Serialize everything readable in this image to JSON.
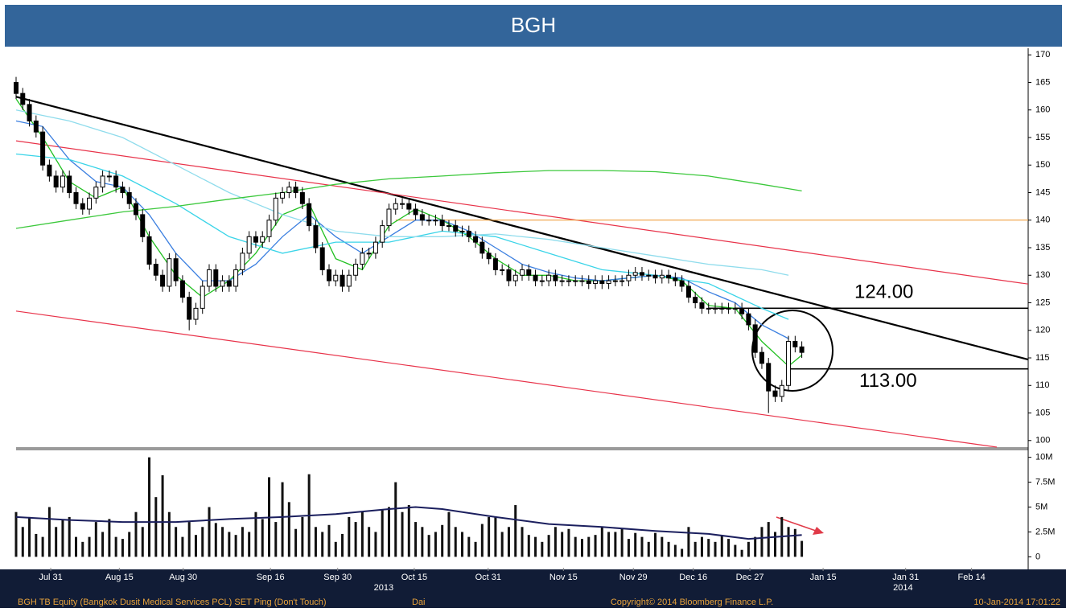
{
  "chart_data": [
    {
      "type": "candlestick",
      "title": "BGH",
      "x": [
        0,
        1,
        2,
        3,
        4,
        5,
        6,
        7,
        8,
        9,
        10,
        11,
        12,
        13,
        14,
        15,
        16,
        17,
        18,
        19,
        20,
        21,
        22,
        23,
        24,
        25,
        26,
        27,
        28,
        29,
        30,
        31,
        32,
        33,
        34,
        35,
        36,
        37,
        38,
        39,
        40,
        41,
        42,
        43,
        44,
        45,
        46,
        47,
        48,
        49,
        50,
        51,
        52,
        53,
        54,
        55,
        56,
        57,
        58,
        59,
        60,
        61,
        62,
        63,
        64,
        65,
        66,
        67,
        68,
        69,
        70,
        71,
        72,
        73,
        74,
        75,
        76,
        77,
        78,
        79,
        80,
        81,
        82,
        83,
        84,
        85,
        86,
        87,
        88,
        89,
        90,
        91,
        92,
        93,
        94,
        95,
        96,
        97,
        98,
        99,
        100,
        101,
        102,
        103,
        104,
        105,
        106,
        107,
        108,
        109,
        110,
        111,
        112,
        113,
        114,
        115,
        116,
        117,
        118
      ],
      "open": [
        165,
        163,
        161,
        158,
        156,
        150,
        148,
        146,
        148,
        145,
        143,
        142,
        144,
        146,
        148,
        148,
        146,
        145,
        143,
        141,
        137,
        132,
        130,
        128,
        133,
        129,
        126,
        122,
        124,
        128,
        131,
        128,
        129,
        128,
        131,
        134,
        137,
        136,
        137,
        140,
        144,
        145,
        146,
        145,
        143,
        139,
        135,
        131,
        129,
        130,
        128,
        130,
        132,
        134,
        134,
        136,
        139,
        142,
        143,
        143,
        142,
        141,
        140,
        140,
        140,
        139,
        139,
        138,
        138,
        137,
        136,
        134,
        133,
        131,
        131,
        129,
        130,
        131,
        130,
        129,
        129,
        130,
        129,
        129,
        129,
        129,
        129,
        128.5,
        129,
        128.5,
        129,
        129,
        129,
        130,
        130.5,
        130,
        130,
        129.5,
        130,
        129.5,
        129,
        128,
        126,
        125,
        124,
        124,
        124,
        124,
        124,
        124,
        123,
        121,
        116,
        114,
        109,
        108,
        110,
        118,
        117
      ],
      "high": [
        166,
        164,
        162,
        159,
        157,
        151,
        149,
        149,
        149,
        146,
        144,
        145,
        147,
        149,
        149,
        149,
        147,
        146,
        144,
        142,
        138,
        133,
        131,
        134,
        134,
        130,
        127,
        125,
        129,
        132,
        132,
        130,
        130,
        132,
        135,
        138,
        138,
        138,
        141,
        145,
        146,
        147,
        147,
        146,
        144,
        140,
        136,
        132,
        131,
        131,
        131,
        133,
        135,
        135,
        137,
        140,
        143,
        144,
        144,
        144,
        143,
        142,
        141,
        141,
        141,
        140,
        140,
        139,
        139,
        138,
        137,
        135,
        134,
        132,
        132,
        131,
        132,
        132,
        131,
        130,
        131,
        131,
        130,
        130,
        130,
        130,
        130,
        130,
        130,
        130,
        130,
        130,
        131,
        131.5,
        131.5,
        131,
        131,
        131,
        131,
        130.5,
        130,
        129,
        127,
        126,
        125,
        125,
        125,
        125,
        125,
        125,
        124,
        122,
        117,
        115,
        110,
        111,
        119,
        119,
        118
      ],
      "low": [
        162,
        160,
        157,
        155,
        149,
        147,
        145,
        145,
        144,
        142,
        141,
        141,
        143,
        145,
        147,
        145,
        144,
        142,
        140,
        136,
        131,
        129,
        127,
        127,
        128,
        125,
        120,
        121,
        123,
        127,
        127,
        127,
        127,
        127,
        130,
        133,
        135,
        135,
        136,
        139,
        143,
        144,
        144,
        142,
        138,
        134,
        130,
        128,
        128,
        127,
        127,
        129,
        131,
        133,
        133,
        135,
        138,
        141,
        142,
        141,
        140,
        139,
        139,
        139,
        138,
        138,
        137,
        137,
        136,
        135,
        133,
        132,
        130,
        130,
        128,
        128,
        129,
        129,
        128,
        128,
        128,
        128,
        128,
        128,
        128,
        128,
        127.5,
        127.5,
        127.5,
        127.5,
        128,
        128,
        128,
        129,
        129,
        129,
        128.5,
        128.5,
        128.5,
        128,
        127,
        125,
        124,
        123,
        123,
        123,
        123,
        123,
        123,
        122,
        120,
        115,
        113,
        105,
        107,
        107,
        109,
        116,
        115
      ],
      "close": [
        163,
        161,
        158,
        156,
        150,
        148,
        146,
        148,
        145,
        143,
        142,
        144,
        146,
        148,
        148,
        146,
        145,
        143,
        141,
        137,
        132,
        130,
        128,
        133,
        129,
        126,
        122,
        124,
        128,
        131,
        128,
        129,
        128,
        131,
        134,
        137,
        136,
        137,
        140,
        144,
        145,
        146,
        145,
        143,
        139,
        135,
        131,
        129,
        130,
        128,
        130,
        132,
        134,
        134,
        136,
        139,
        142,
        143,
        143,
        142,
        141,
        140,
        140,
        140,
        139,
        139,
        138,
        138,
        137,
        136,
        134,
        133,
        131,
        131,
        129,
        130,
        131,
        130,
        129,
        129,
        130,
        129,
        129,
        129,
        129,
        129,
        128.5,
        129,
        128.5,
        129,
        129,
        129,
        130,
        130.5,
        130,
        130,
        129.5,
        130,
        129.5,
        129,
        128,
        126,
        125,
        124,
        124,
        124,
        124,
        124,
        124,
        123,
        121,
        116,
        114,
        109,
        108,
        110,
        118,
        117,
        116
      ],
      "up_color": "#ffffff",
      "down_color": "#000000",
      "lines": [
        {
          "color": "#22c022",
          "x": [
            0,
            4,
            8,
            12,
            16,
            20,
            24,
            28,
            32,
            36,
            40,
            44,
            48,
            52,
            56,
            60,
            64,
            68,
            72,
            76,
            80,
            84,
            88,
            92,
            96,
            100,
            104,
            108,
            112,
            116,
            118
          ],
          "values": [
            162,
            155,
            147,
            144,
            146,
            137,
            130,
            126,
            129,
            134,
            141,
            143,
            133,
            131,
            139,
            142,
            140,
            137,
            133,
            130,
            130,
            129,
            129,
            129.5,
            130,
            129,
            124.5,
            124,
            118,
            113.5,
            115.5
          ]
        },
        {
          "color": "#3b7fe0",
          "x": [
            0,
            4,
            8,
            12,
            16,
            20,
            24,
            28,
            32,
            36,
            40,
            44,
            48,
            52,
            56,
            60,
            64,
            68,
            72,
            76,
            80,
            84,
            88,
            92,
            96,
            100,
            104,
            108,
            112,
            116
          ],
          "values": [
            158,
            157,
            151,
            147,
            146,
            141,
            134,
            129,
            129,
            132,
            137,
            141,
            137,
            134,
            137,
            140,
            140,
            138,
            135,
            132,
            130.5,
            129.5,
            129,
            129.5,
            130,
            129.5,
            127,
            125,
            121,
            118.5
          ]
        },
        {
          "color": "#3ad4e8",
          "x": [
            0,
            8,
            16,
            24,
            32,
            40,
            48,
            56,
            64,
            72,
            80,
            88,
            96,
            104,
            112,
            116
          ],
          "values": [
            152,
            151,
            148,
            143,
            137,
            134,
            136,
            136,
            138,
            137,
            134,
            131,
            130,
            128.5,
            124,
            122
          ]
        },
        {
          "color": "#8fdcec",
          "x": [
            0,
            8,
            16,
            24,
            32,
            40,
            48,
            56,
            64,
            72,
            80,
            88,
            96,
            104,
            112,
            116
          ],
          "values": [
            160,
            158,
            155,
            150,
            145,
            141,
            138,
            137,
            137,
            137.5,
            136.5,
            135,
            133.5,
            132,
            131,
            130
          ]
        },
        {
          "color": "#3cc83c",
          "x": [
            0,
            8,
            16,
            24,
            32,
            40,
            48,
            56,
            64,
            72,
            80,
            88,
            96,
            104,
            112,
            118
          ],
          "values": [
            138.5,
            140,
            141.5,
            142.5,
            143.8,
            145,
            146.5,
            147.5,
            148,
            148.6,
            149,
            149,
            148.8,
            148,
            146.5,
            145.3
          ]
        }
      ],
      "trendlines": [
        {
          "color": "#000000",
          "x": [
            0,
            152
          ],
          "values": [
            162.4,
            114.7
          ]
        },
        {
          "color": "#e8334a",
          "x": [
            0,
            152
          ],
          "values": [
            154.4,
            128.4
          ]
        },
        {
          "color": "#e8334a",
          "x": [
            0,
            147.3
          ],
          "values": [
            123.5,
            98.8
          ]
        },
        {
          "color": "#f0a040",
          "x": [
            57,
            152
          ],
          "values": [
            140,
            140
          ]
        }
      ],
      "levels": [
        {
          "value": 124,
          "label": "124.00",
          "x": [
            104,
            152
          ]
        },
        {
          "value": 113,
          "label": "113.00",
          "x": [
            116,
            152
          ]
        }
      ],
      "xlim": [
        0,
        152
      ],
      "ylim": [
        98.8,
        171.2
      ],
      "yticks": [
        100,
        105,
        110,
        115,
        120,
        125,
        130,
        135,
        140,
        145,
        150,
        155,
        160,
        165,
        170
      ],
      "xticks": [
        {
          "value": 5.2,
          "label": "Jul 31"
        },
        {
          "value": 15.5,
          "label": "Aug 15"
        },
        {
          "value": 25.1,
          "label": "Aug 30"
        },
        {
          "value": 38.2,
          "label": "Sep 16"
        },
        {
          "value": 48.3,
          "label": "Sep 30"
        },
        {
          "value": 59.8,
          "label": "Oct 15"
        },
        {
          "value": 70.9,
          "label": "Oct 31"
        },
        {
          "value": 82.2,
          "label": "Nov 15"
        },
        {
          "value": 92.7,
          "label": "Nov 29"
        },
        {
          "value": 101.7,
          "label": "Dec 16"
        },
        {
          "value": 110.2,
          "label": "Dec 27"
        },
        {
          "value": 121.2,
          "label": "Jan 15"
        },
        {
          "value": 133.6,
          "label": "Jan 31"
        },
        {
          "value": 143.5,
          "label": "Feb 14"
        }
      ],
      "year_ticks": [
        {
          "value": 55.2,
          "label": "2013"
        },
        {
          "value": 133.2,
          "label": "2014"
        }
      ],
      "footer": [
        "BGH TB Equity (Bangkok Dusit Medical Services PCL) SET Ping (Don't Touch)",
        "Dai",
        "Copyright© 2014 Bloomberg Finance L.P.",
        "10-Jan-2014 17:01:22"
      ]
    },
    {
      "type": "bar",
      "color": "#111111",
      "values": [
        4.5,
        3,
        4,
        2.3,
        2,
        5,
        3,
        3.7,
        4,
        2,
        1.5,
        2,
        3.5,
        2.5,
        3.8,
        2,
        1.8,
        2.5,
        4.5,
        3,
        10,
        6,
        8.2,
        4.5,
        3,
        2,
        3.5,
        2.2,
        3,
        5,
        3.4,
        3,
        2.5,
        2.2,
        3,
        2.5,
        4.5,
        3.8,
        8,
        3.5,
        7.5,
        5.5,
        2.8,
        4,
        8.3,
        3,
        2.5,
        3.2,
        1.5,
        2.3,
        4,
        3.5,
        4.5,
        3,
        2.5,
        4.8,
        5,
        7.5,
        4.5,
        5.2,
        3.5,
        3,
        2.2,
        2.5,
        3.2,
        4.5,
        3,
        2.5,
        2,
        1.5,
        3.3,
        4,
        4,
        2.5,
        3,
        5.2,
        3,
        2.2,
        2,
        1.5,
        2.2,
        3,
        2.5,
        2.8,
        2,
        1.8,
        2,
        2.2,
        3,
        2.5,
        2.5,
        2.8,
        1.8,
        2.4,
        2,
        1.5,
        2.4,
        2,
        1.5,
        1.2,
        0.8,
        3,
        1.5,
        2,
        1.8,
        1.5,
        2.2,
        1.8,
        1.2,
        0.7,
        1.5,
        2,
        3,
        3.5,
        2.5,
        4,
        3,
        2.8,
        1.6
      ],
      "lines": [
        {
          "color": "#1b1f5e",
          "x": [
            0,
            8,
            16,
            24,
            32,
            40,
            48,
            56,
            60,
            64,
            72,
            80,
            88,
            96,
            104,
            110,
            118
          ],
          "values": [
            4,
            3.7,
            3.5,
            3.5,
            3.8,
            4,
            4.3,
            4.8,
            5,
            4.8,
            4,
            3.3,
            3,
            2.6,
            2.3,
            1.8,
            2.2
          ]
        }
      ],
      "ylim": [
        -1.1,
        10.7
      ],
      "yticks": [
        0,
        {
          "value": 2.5,
          "label": "2.5M"
        },
        {
          "value": 5,
          "label": "5M"
        },
        {
          "value": 7.5,
          "label": "7.5M"
        },
        {
          "value": 10,
          "label": "10M"
        }
      ]
    }
  ]
}
